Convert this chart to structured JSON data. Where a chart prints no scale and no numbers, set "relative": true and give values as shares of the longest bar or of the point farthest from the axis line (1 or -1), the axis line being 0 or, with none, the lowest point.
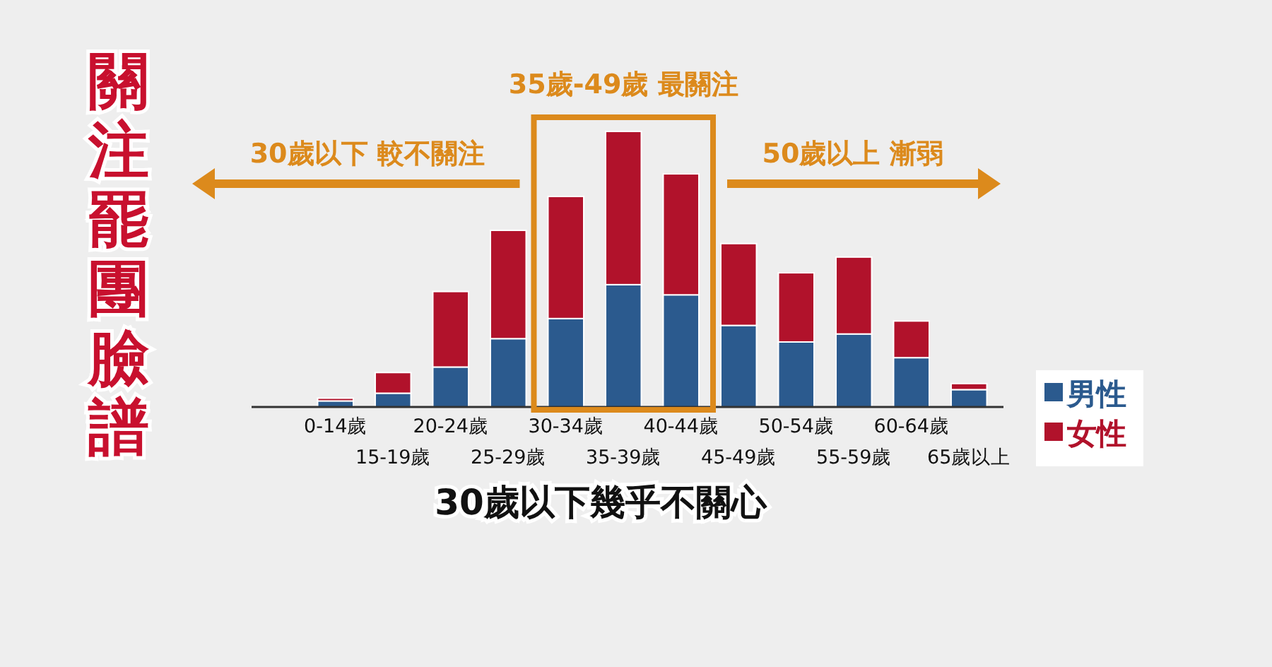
{
  "chart_data": {
    "type": "bar",
    "stacked": true,
    "relative": true,
    "title": "關注罷團臉譜",
    "subtitle": "30歲以下幾乎不關心",
    "categories": [
      "0-14歲",
      "15-19歲",
      "20-24歲",
      "25-29歲",
      "30-34歲",
      "35-39歲",
      "40-44歲",
      "45-49歲",
      "50-54歲",
      "55-59歲",
      "60-64歲",
      "65歲以上"
    ],
    "series": [
      {
        "name": "男性",
        "color": "#2b5a8e",
        "values": [
          0.022,
          0.05,
          0.145,
          0.248,
          0.321,
          0.444,
          0.407,
          0.296,
          0.236,
          0.265,
          0.179,
          0.063
        ]
      },
      {
        "name": "女性",
        "color": "#b1122b",
        "values": [
          0.01,
          0.075,
          0.274,
          0.393,
          0.443,
          0.556,
          0.439,
          0.297,
          0.251,
          0.279,
          0.133,
          0.022
        ]
      }
    ],
    "legend": "bottom right",
    "annotations": [
      "35歲-49歲 最關注",
      "30歲以下 較不關注",
      "50歲以上 漸弱"
    ]
  }
}
